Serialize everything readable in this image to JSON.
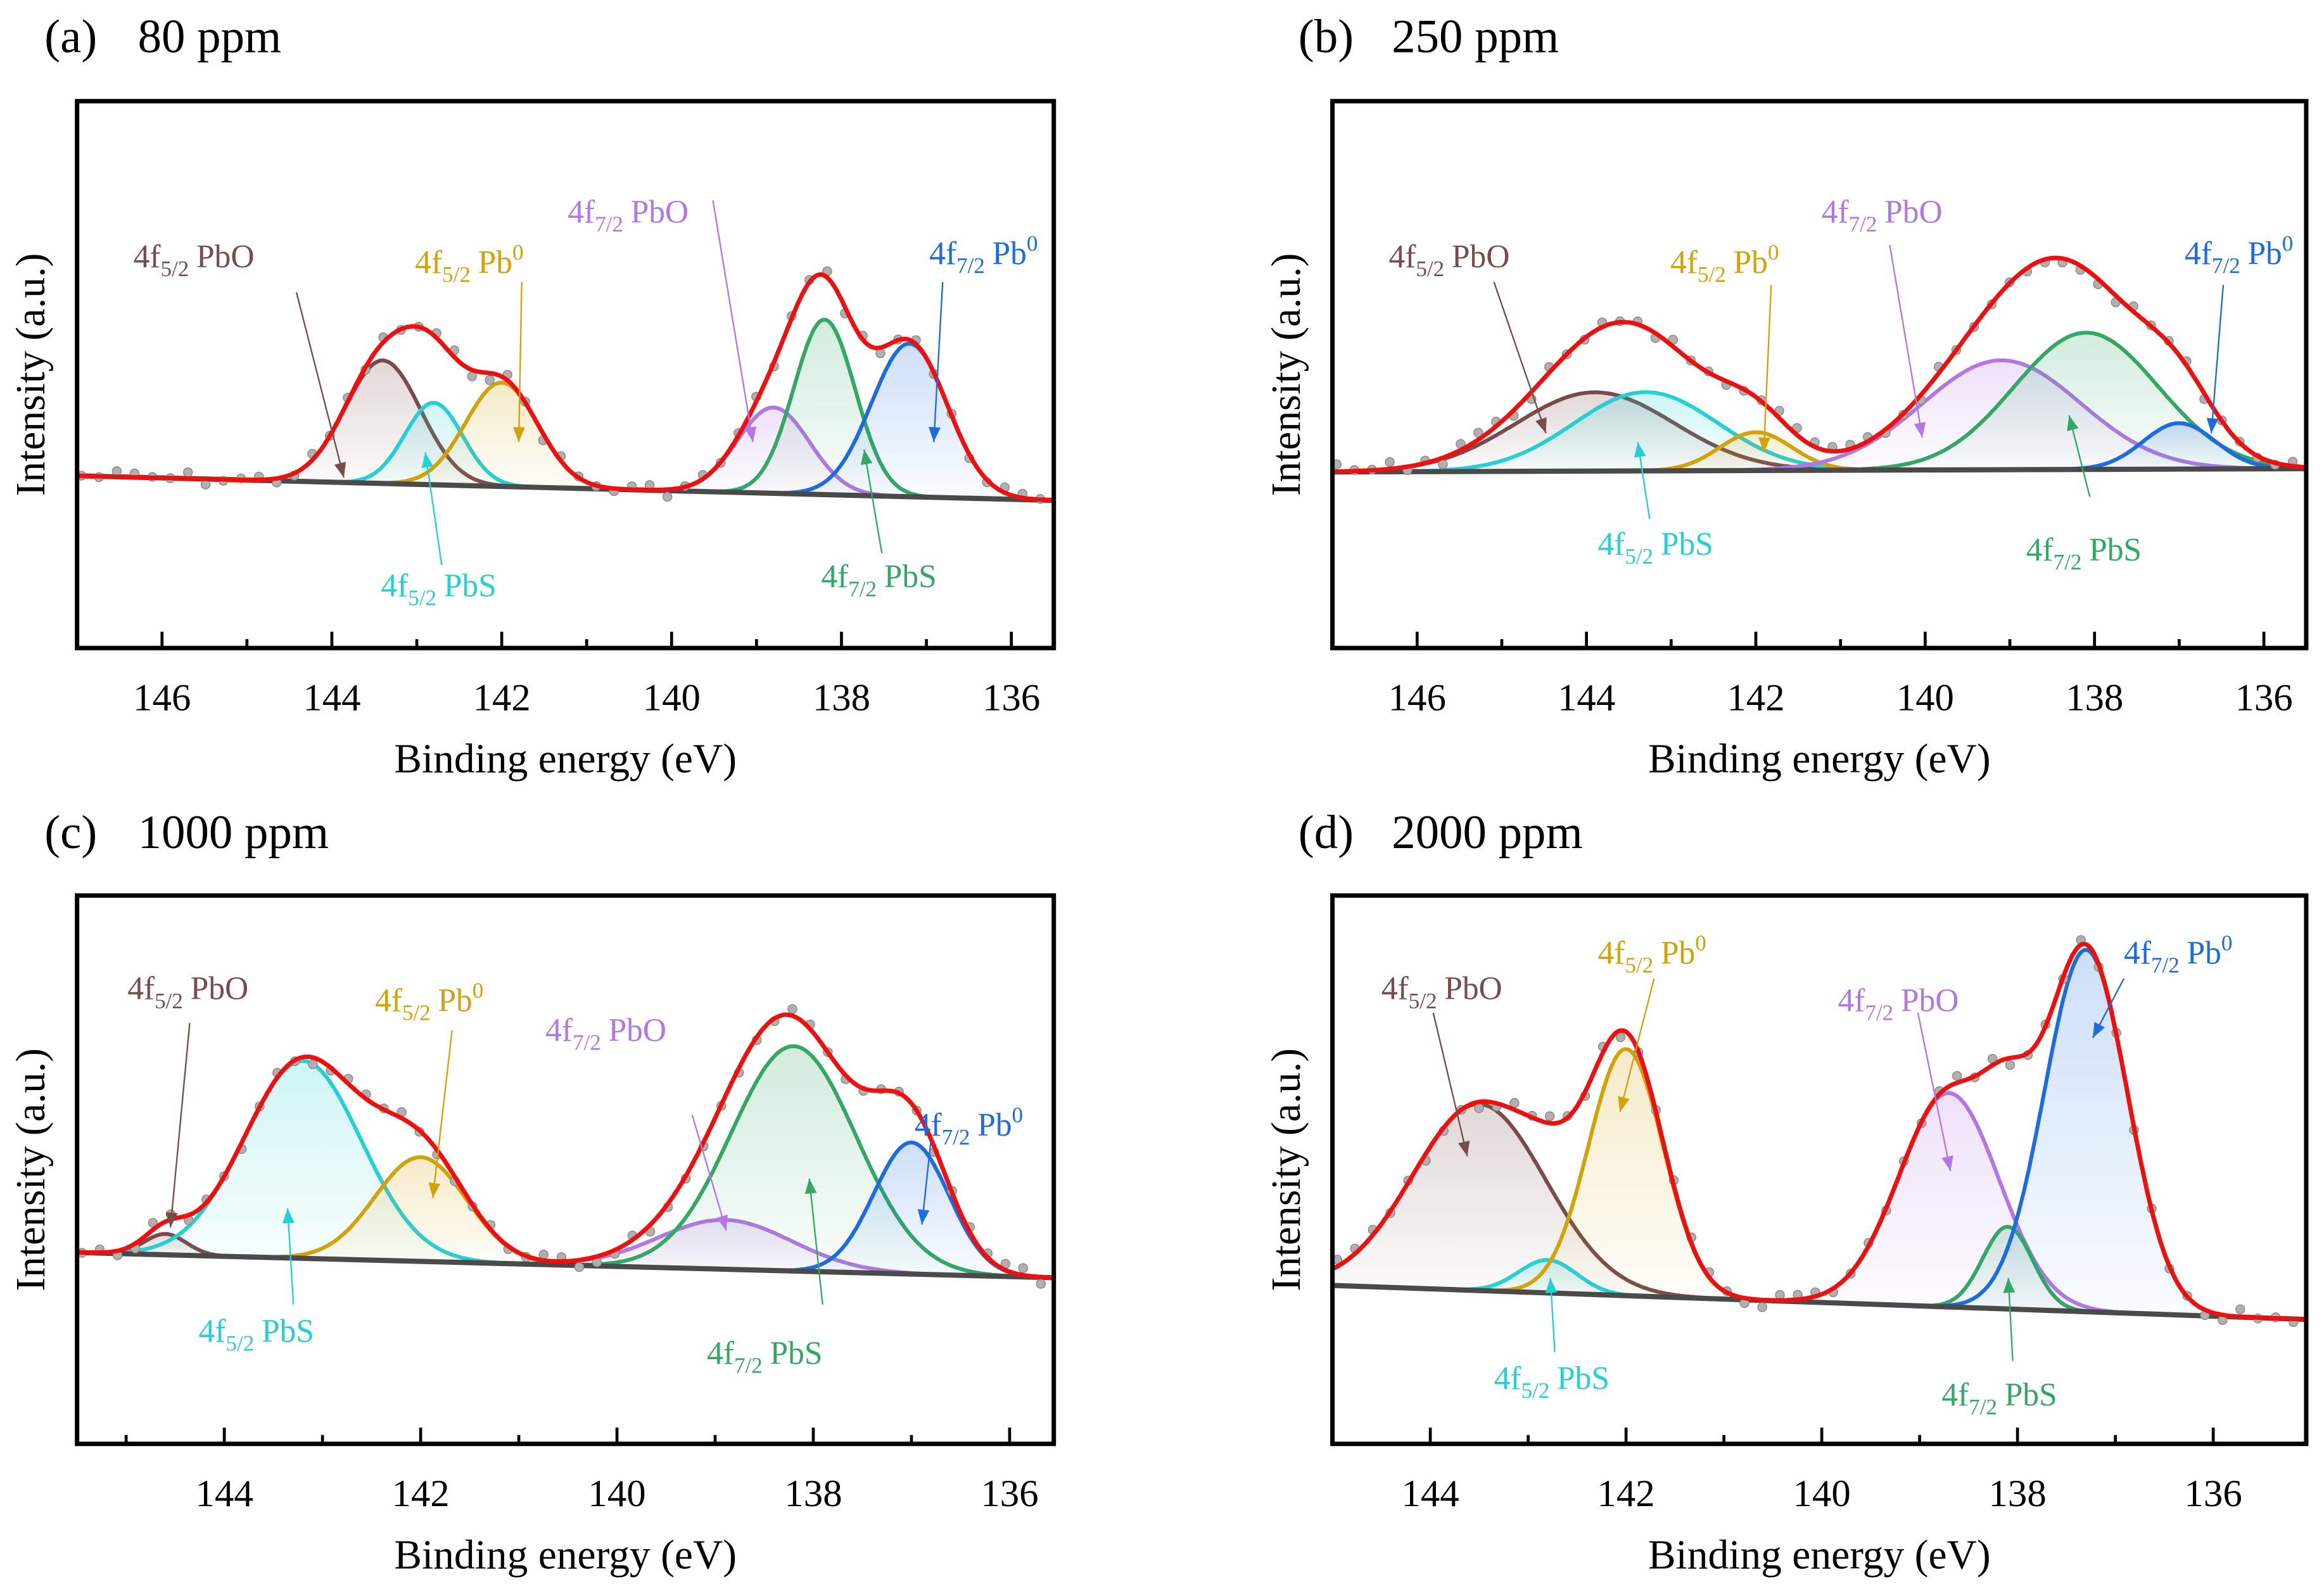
{
  "chart_data": [
    {
      "type": "line",
      "panel_label": "(a)",
      "title": "80 ppm",
      "xlabel": "Binding energy (eV)",
      "ylabel": "Intensity (a.u.)",
      "xlim": [
        147.0,
        135.5
      ],
      "ylim": [
        0,
        100
      ],
      "xticks": [
        "146",
        "144",
        "142",
        "140",
        "138",
        "136"
      ],
      "xtick_values": [
        146,
        144,
        142,
        140,
        138,
        136
      ],
      "baseline": [
        [
          147.0,
          31.5
        ],
        [
          135.5,
          27.0
        ]
      ],
      "components": [
        {
          "name": "4f5/2 PbO",
          "prefix": "4f",
          "sub": "5/2",
          "species": "PbO",
          "sup": "",
          "color": "#7a4b4b",
          "center": 143.4,
          "height": 22.5,
          "fwhm": 1.05
        },
        {
          "name": "4f5/2 PbS",
          "prefix": "4f",
          "sub": "5/2",
          "species": "PbS",
          "sup": "",
          "color": "#22d0d6",
          "center": 142.8,
          "height": 15.0,
          "fwhm": 0.8
        },
        {
          "name": "4f5/2 Pb0",
          "prefix": "4f",
          "sub": "5/2",
          "species": "Pb",
          "sup": "0",
          "color": "#d4a106",
          "center": 142.0,
          "height": 19.0,
          "fwhm": 1.0
        },
        {
          "name": "4f7/2 PbO",
          "prefix": "4f",
          "sub": "7/2",
          "species": "PbO",
          "sup": "",
          "color": "#b277e6",
          "center": 138.8,
          "height": 15.7,
          "fwhm": 1.0
        },
        {
          "name": "4f7/2 PbS",
          "prefix": "4f",
          "sub": "7/2",
          "species": "PbS",
          "sup": "",
          "color": "#33a865",
          "center": 138.2,
          "height": 32.0,
          "fwhm": 0.85
        },
        {
          "name": "4f7/2 Pb0",
          "prefix": "4f",
          "sub": "7/2",
          "species": "Pb",
          "sup": "0",
          "color": "#1c6be0",
          "center": 137.2,
          "height": 28.0,
          "fwhm": 1.05
        }
      ]
    },
    {
      "type": "line",
      "panel_label": "(b)",
      "title": "250 ppm",
      "xlabel": "Binding energy (eV)",
      "ylabel": "Intensity (a.u.)",
      "xlim": [
        147.0,
        135.5
      ],
      "ylim": [
        0,
        100
      ],
      "xticks": [
        "146",
        "144",
        "142",
        "140",
        "138",
        "136"
      ],
      "xtick_values": [
        146,
        144,
        142,
        140,
        138,
        136
      ],
      "baseline": [
        [
          147.0,
          32.2
        ],
        [
          135.5,
          32.8
        ]
      ],
      "components": [
        {
          "name": "4f5/2 PbO",
          "prefix": "4f",
          "sub": "5/2",
          "species": "PbO",
          "sup": "",
          "color": "#7a4b4b",
          "center": 143.9,
          "height": 14.4,
          "fwhm": 2.2
        },
        {
          "name": "4f5/2 PbS",
          "prefix": "4f",
          "sub": "5/2",
          "species": "PbS",
          "sup": "",
          "color": "#22d0d6",
          "center": 143.3,
          "height": 14.4,
          "fwhm": 2.0
        },
        {
          "name": "4f5/2 Pb0",
          "prefix": "4f",
          "sub": "5/2",
          "species": "Pb",
          "sup": "0",
          "color": "#d4a106",
          "center": 142.0,
          "height": 7.0,
          "fwhm": 1.0
        },
        {
          "name": "4f7/2 PbO",
          "prefix": "4f",
          "sub": "7/2",
          "species": "PbO",
          "sup": "",
          "color": "#b277e6",
          "center": 139.1,
          "height": 20.0,
          "fwhm": 2.2
        },
        {
          "name": "4f7/2 PbS",
          "prefix": "4f",
          "sub": "7/2",
          "species": "PbS",
          "sup": "",
          "color": "#33a865",
          "center": 138.1,
          "height": 25.0,
          "fwhm": 2.0
        },
        {
          "name": "4f7/2 Pb0",
          "prefix": "4f",
          "sub": "7/2",
          "species": "Pb",
          "sup": "0",
          "color": "#1c6be0",
          "center": 137.0,
          "height": 8.4,
          "fwhm": 1.0
        }
      ]
    },
    {
      "type": "line",
      "panel_label": "(c)",
      "title": "1000 ppm",
      "xlabel": "Binding energy (eV)",
      "ylabel": "Intensity (a.u.)",
      "xlim": [
        145.5,
        135.55
      ],
      "ylim": [
        0,
        100
      ],
      "xticks": [
        "144",
        "142",
        "140",
        "138",
        "136"
      ],
      "xtick_values": [
        144,
        142,
        140,
        138,
        136
      ],
      "baseline": [
        [
          145.5,
          34.9
        ],
        [
          135.55,
          30.3
        ]
      ],
      "components": [
        {
          "name": "4f5/2 PbO",
          "prefix": "4f",
          "sub": "5/2",
          "species": "PbO",
          "sup": "",
          "color": "#7a4b4b",
          "center": 144.6,
          "height": 3.8,
          "fwhm": 0.5
        },
        {
          "name": "4f5/2 PbS",
          "prefix": "4f",
          "sub": "5/2",
          "species": "PbS",
          "sup": "",
          "color": "#22d0d6",
          "center": 143.2,
          "height": 36.0,
          "fwhm": 1.4
        },
        {
          "name": "4f5/2 Pb0",
          "prefix": "4f",
          "sub": "5/2",
          "species": "Pb",
          "sup": "0",
          "color": "#d4a106",
          "center": 142.0,
          "height": 19.0,
          "fwhm": 1.1
        },
        {
          "name": "4f7/2 PbO",
          "prefix": "4f",
          "sub": "7/2",
          "species": "PbO",
          "sup": "",
          "color": "#b277e6",
          "center": 138.9,
          "height": 9.0,
          "fwhm": 1.6
        },
        {
          "name": "4f7/2 PbS",
          "prefix": "4f",
          "sub": "7/2",
          "species": "PbS",
          "sup": "",
          "color": "#33a865",
          "center": 138.2,
          "height": 41.0,
          "fwhm": 1.5
        },
        {
          "name": "4f7/2 Pb0",
          "prefix": "4f",
          "sub": "7/2",
          "species": "Pb",
          "sup": "0",
          "color": "#1c6be0",
          "center": 137.0,
          "height": 24.0,
          "fwhm": 0.9
        }
      ]
    },
    {
      "type": "line",
      "panel_label": "(d)",
      "title": "2000 ppm",
      "xlabel": "Binding energy (eV)",
      "ylabel": "Intensity (a.u.)",
      "xlim": [
        145.0,
        135.05
      ],
      "ylim": [
        0,
        100
      ],
      "xticks": [
        "144",
        "142",
        "140",
        "138",
        "136"
      ],
      "xtick_values": [
        144,
        142,
        140,
        138,
        136
      ],
      "baseline": [
        [
          145.0,
          28.9
        ],
        [
          135.05,
          22.7
        ]
      ],
      "components": [
        {
          "name": "4f5/2 PbO",
          "prefix": "4f",
          "sub": "5/2",
          "species": "PbO",
          "sup": "",
          "color": "#7a4b4b",
          "center": 143.5,
          "height": 34.0,
          "fwhm": 1.6
        },
        {
          "name": "4f5/2 PbS",
          "prefix": "4f",
          "sub": "5/2",
          "species": "PbS",
          "sup": "",
          "color": "#22d0d6",
          "center": 142.8,
          "height": 6.0,
          "fwhm": 0.7
        },
        {
          "name": "4f5/2 Pb0",
          "prefix": "4f",
          "sub": "5/2",
          "species": "Pb",
          "sup": "0",
          "color": "#d4a106",
          "center": 142.0,
          "height": 45.0,
          "fwhm": 0.9
        },
        {
          "name": "4f7/2 PbO",
          "prefix": "4f",
          "sub": "7/2",
          "species": "PbO",
          "sup": "",
          "color": "#b277e6",
          "center": 138.7,
          "height": 39.0,
          "fwhm": 1.2
        },
        {
          "name": "4f7/2 PbS",
          "prefix": "4f",
          "sub": "7/2",
          "species": "PbS",
          "sup": "",
          "color": "#33a865",
          "center": 138.1,
          "height": 15.0,
          "fwhm": 0.6
        },
        {
          "name": "4f7/2 Pb0",
          "prefix": "4f",
          "sub": "7/2",
          "species": "Pb",
          "sup": "0",
          "color": "#1c6be0",
          "center": 137.3,
          "height": 66.0,
          "fwhm": 1.0
        }
      ]
    }
  ],
  "colors": {
    "envelope": "#ee0f0f",
    "background_line": "#4a4a4a",
    "points": "#b0b0b0"
  }
}
